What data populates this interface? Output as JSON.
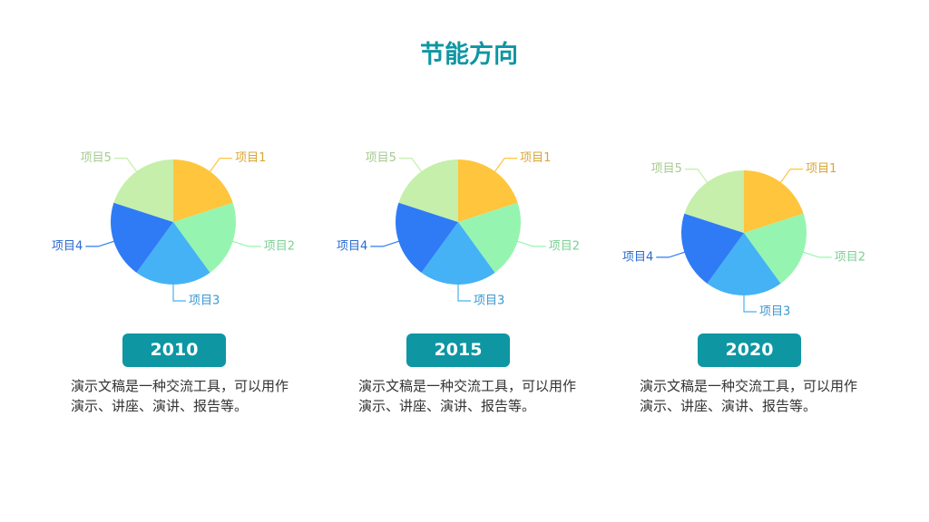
{
  "title": "节能方向",
  "chart_data": [
    {
      "type": "pie",
      "label": "2010",
      "description": "演示文稿是一种交流工具，可以用作演示、讲座、演讲、报告等。",
      "categories": [
        "项目1",
        "项目2",
        "项目3",
        "项目4",
        "项目5"
      ],
      "values": [
        20,
        20,
        20,
        20,
        20
      ],
      "colors": [
        "#FFC53D",
        "#95F5B0",
        "#45B2F5",
        "#2F7BF5",
        "#C5EFAA"
      ]
    },
    {
      "type": "pie",
      "label": "2015",
      "description": "演示文稿是一种交流工具，可以用作演示、讲座、演讲、报告等。",
      "categories": [
        "项目1",
        "项目2",
        "项目3",
        "项目4",
        "项目5"
      ],
      "values": [
        20,
        20,
        20,
        20,
        20
      ],
      "colors": [
        "#FFC53D",
        "#95F5B0",
        "#45B2F5",
        "#2F7BF5",
        "#C5EFAA"
      ]
    },
    {
      "type": "pie",
      "label": "2020",
      "description": "演示文稿是一种交流工具，可以用作演示、讲座、演讲、报告等。",
      "categories": [
        "项目1",
        "项目2",
        "项目3",
        "项目4",
        "项目5"
      ],
      "values": [
        20,
        20,
        20,
        20,
        20
      ],
      "colors": [
        "#FFC53D",
        "#95F5B0",
        "#45B2F5",
        "#2F7BF5",
        "#C5EFAA"
      ]
    }
  ]
}
